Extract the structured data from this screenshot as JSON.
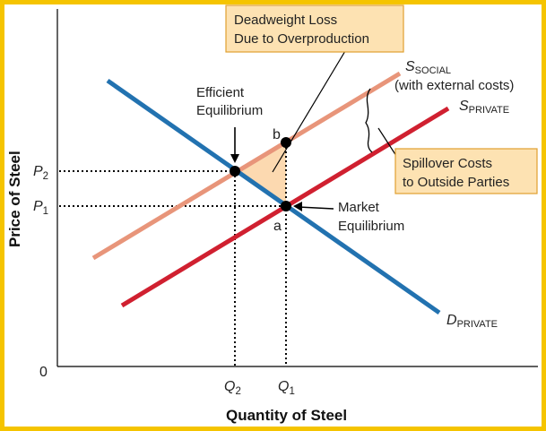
{
  "colors": {
    "frame": "#f5c400",
    "callout_fill": "#fde2b2",
    "callout_border": "#e0a030",
    "deadweight_fill": "#fcd9b0",
    "s_social": "#e8957a",
    "s_private": "#d02030",
    "d_private": "#2272b0",
    "guides": "#000000"
  },
  "axes": {
    "y_title": "Price of Steel",
    "x_title": "Quantity of Steel",
    "origin": "0",
    "p2_letter": "P",
    "p2_sub": "2",
    "p1_letter": "P",
    "p1_sub": "1",
    "q2_letter": "Q",
    "q2_sub": "2",
    "q1_letter": "Q",
    "q1_sub": "1"
  },
  "curves": {
    "s_social": {
      "letter": "S",
      "sub": "SOCIAL",
      "note": "(with external costs)"
    },
    "s_private": {
      "letter": "S",
      "sub": "PRIVATE"
    },
    "d_private": {
      "letter": "D",
      "sub": "PRIVATE"
    }
  },
  "points": {
    "b": "b",
    "a": "a"
  },
  "labels": {
    "efficient_line1": "Efficient",
    "efficient_line2": "Equilibrium",
    "market_line1": "Market",
    "market_line2": "Equilibrium"
  },
  "callouts": {
    "deadweight_line1": "Deadweight Loss",
    "deadweight_line2": "Due to Overproduction",
    "spillover_line1": "Spillover Costs",
    "spillover_line2": "to Outside Parties"
  }
}
